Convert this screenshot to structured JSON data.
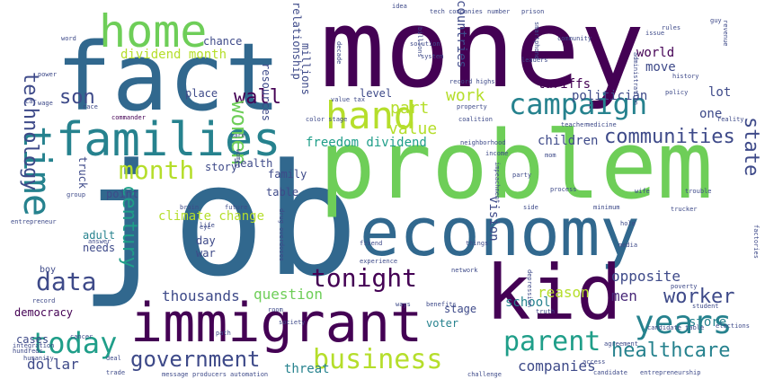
{
  "palette": {
    "deep_purple": "#440154",
    "purple": "#482878",
    "indigo": "#3e4a89",
    "blue": "#31688e",
    "teal_blue": "#26828e",
    "teal": "#1f9e89",
    "green": "#35b779",
    "light_green": "#6ece58",
    "lime": "#b5de2b",
    "yellow": "#fde725"
  },
  "words": [
    {
      "text": "money",
      "color": "#440154"
    },
    {
      "text": "job",
      "color": "#31688e"
    },
    {
      "text": "problem",
      "color": "#6ece58"
    },
    {
      "text": "fact",
      "color": "#31688e"
    },
    {
      "text": "economy",
      "color": "#31688e"
    },
    {
      "text": "immigrant",
      "color": "#440154"
    },
    {
      "text": "kid",
      "color": "#440154"
    },
    {
      "text": "families",
      "color": "#26828e"
    },
    {
      "text": "home",
      "color": "#6ece58"
    },
    {
      "text": "hand",
      "color": "#b5de2b"
    },
    {
      "text": "time",
      "color": "#26828e"
    },
    {
      "text": "campaign",
      "color": "#26828e"
    },
    {
      "text": "today",
      "color": "#1f9e89"
    },
    {
      "text": "years",
      "color": "#26828e"
    },
    {
      "text": "parent",
      "color": "#1f9e89"
    },
    {
      "text": "business",
      "color": "#b5de2b"
    },
    {
      "text": "government",
      "color": "#3e4a89"
    },
    {
      "text": "tonight",
      "color": "#440154"
    },
    {
      "text": "data",
      "color": "#3e4a89"
    },
    {
      "text": "healthcare",
      "color": "#26828e"
    },
    {
      "text": "worker",
      "color": "#3e4a89"
    },
    {
      "text": "month",
      "color": "#b5de2b"
    },
    {
      "text": "communities",
      "color": "#3e4a89"
    },
    {
      "text": "son",
      "color": "#3e4a89"
    },
    {
      "text": "wall",
      "color": "#440154"
    },
    {
      "text": "technology",
      "color": "#3e4a89"
    },
    {
      "text": "women",
      "color": "#6ece58"
    },
    {
      "text": "state",
      "color": "#3e4a89"
    },
    {
      "text": "century",
      "color": "#1f9e89"
    },
    {
      "text": "thousands",
      "color": "#3e4a89"
    },
    {
      "text": "question",
      "color": "#6ece58"
    },
    {
      "text": "dollar",
      "color": "#3e4a89"
    },
    {
      "text": "companies",
      "color": "#3e4a89"
    },
    {
      "text": "value",
      "color": "#b5de2b"
    },
    {
      "text": "part",
      "color": "#b5de2b"
    },
    {
      "text": "work",
      "color": "#b5de2b"
    },
    {
      "text": "tariffs",
      "color": "#440154"
    },
    {
      "text": "politician",
      "color": "#3e4a89"
    },
    {
      "text": "countries",
      "color": "#3e4a89"
    },
    {
      "text": "children",
      "color": "#3e4a89"
    },
    {
      "text": "men",
      "color": "#482878"
    },
    {
      "text": "opposite",
      "color": "#3e4a89"
    },
    {
      "text": "reason",
      "color": "#b5de2b"
    },
    {
      "text": "school",
      "color": "#26828e"
    },
    {
      "text": "store",
      "color": "#26828e"
    },
    {
      "text": "threat",
      "color": "#26828e"
    },
    {
      "text": "democracy",
      "color": "#440154"
    },
    {
      "text": "cases",
      "color": "#3e4a89"
    },
    {
      "text": "story",
      "color": "#3e4a89"
    },
    {
      "text": "health",
      "color": "#3e4a89"
    },
    {
      "text": "family",
      "color": "#3e4a89"
    },
    {
      "text": "table",
      "color": "#3e4a89"
    },
    {
      "text": "point",
      "color": "#3e4a89"
    },
    {
      "text": "needs",
      "color": "#3e4a89"
    },
    {
      "text": "adult",
      "color": "#26828e"
    },
    {
      "text": "day",
      "color": "#3e4a89"
    },
    {
      "text": "war",
      "color": "#3e4a89"
    },
    {
      "text": "place",
      "color": "#3e4a89"
    },
    {
      "text": "chance",
      "color": "#3e4a89"
    },
    {
      "text": "level",
      "color": "#3e4a89"
    },
    {
      "text": "lot",
      "color": "#3e4a89"
    },
    {
      "text": "move",
      "color": "#3e4a89"
    },
    {
      "text": "one",
      "color": "#3e4a89"
    },
    {
      "text": "world",
      "color": "#440154"
    },
    {
      "text": "vision",
      "color": "#3e4a89"
    },
    {
      "text": "stage",
      "color": "#3e4a89"
    },
    {
      "text": "voter",
      "color": "#26828e"
    },
    {
      "text": "climate change",
      "color": "#b5de2b"
    },
    {
      "text": "freedom dividend",
      "color": "#1f9e89"
    },
    {
      "text": "dividend month",
      "color": "#b5de2b"
    },
    {
      "text": "millions",
      "color": "#3e4a89"
    },
    {
      "text": "resources",
      "color": "#3e4a89"
    },
    {
      "text": "relationship",
      "color": "#3e4a89"
    },
    {
      "text": "truck",
      "color": "#3e4a89"
    },
    {
      "text": "boy",
      "color": "#3e4a89"
    },
    {
      "text": "record",
      "color": "#3e4a89"
    },
    {
      "text": "hundreds",
      "color": "#3e4a89"
    },
    {
      "text": "group",
      "color": "#3e4a89"
    },
    {
      "text": "trade",
      "color": "#3e4a89"
    },
    {
      "text": "message",
      "color": "#3e4a89"
    },
    {
      "text": "deal",
      "color": "#3e4a89"
    },
    {
      "text": "path",
      "color": "#3e4a89"
    },
    {
      "text": "room",
      "color": "#3e4a89"
    },
    {
      "text": "society",
      "color": "#3e4a89"
    },
    {
      "text": "friend",
      "color": "#3e4a89"
    },
    {
      "text": "trucker",
      "color": "#3e4a89"
    },
    {
      "text": "trouble",
      "color": "#3e4a89"
    },
    {
      "text": "wife",
      "color": "#3e4a89"
    },
    {
      "text": "side",
      "color": "#3e4a89"
    },
    {
      "text": "process",
      "color": "#3e4a89"
    },
    {
      "text": "media",
      "color": "#3e4a89"
    },
    {
      "text": "history",
      "color": "#3e4a89"
    },
    {
      "text": "policy",
      "color": "#3e4a89"
    },
    {
      "text": "reality",
      "color": "#3e4a89"
    },
    {
      "text": "idea",
      "color": "#3e4a89"
    },
    {
      "text": "tech companies",
      "color": "#3e4a89"
    },
    {
      "text": "number",
      "color": "#3e4a89"
    },
    {
      "text": "prison",
      "color": "#3e4a89"
    },
    {
      "text": "word",
      "color": "#3e4a89"
    },
    {
      "text": "power",
      "color": "#3e4a89"
    },
    {
      "text": "wage",
      "color": "#3e4a89"
    },
    {
      "text": "race",
      "color": "#3e4a89"
    },
    {
      "text": "commander",
      "color": "#440154"
    },
    {
      "text": "billions",
      "color": "#3e4a89"
    },
    {
      "text": "system",
      "color": "#3e4a89"
    },
    {
      "text": "solution",
      "color": "#3e4a89"
    },
    {
      "text": "record highs",
      "color": "#3e4a89"
    },
    {
      "text": "property",
      "color": "#3e4a89"
    },
    {
      "text": "coalition",
      "color": "#3e4a89"
    },
    {
      "text": "neighborhood",
      "color": "#3e4a89"
    },
    {
      "text": "income",
      "color": "#3e4a89"
    },
    {
      "text": "party",
      "color": "#3e4a89"
    },
    {
      "text": "impeachment",
      "color": "#3e4a89"
    },
    {
      "text": "things",
      "color": "#3e4a89"
    },
    {
      "text": "network",
      "color": "#3e4a89"
    },
    {
      "text": "depression",
      "color": "#3e4a89"
    },
    {
      "text": "truth",
      "color": "#3e4a89"
    },
    {
      "text": "benefits",
      "color": "#3e4a89"
    },
    {
      "text": "ways",
      "color": "#3e4a89"
    },
    {
      "text": "challenge",
      "color": "#3e4a89"
    },
    {
      "text": "candidate",
      "color": "#3e4a89"
    },
    {
      "text": "entrepreneurship",
      "color": "#3e4a89"
    },
    {
      "text": "entrepreneur",
      "color": "#3e4a89"
    },
    {
      "text": "future",
      "color": "#3e4a89"
    },
    {
      "text": "life",
      "color": "#3e4a89"
    },
    {
      "text": "experience",
      "color": "#3e4a89"
    },
    {
      "text": "agreement",
      "color": "#3e4a89"
    },
    {
      "text": "elections",
      "color": "#3e4a89"
    },
    {
      "text": "student",
      "color": "#3e4a89"
    },
    {
      "text": "cancer",
      "color": "#3e4a89"
    },
    {
      "text": "integration",
      "color": "#3e4a89"
    },
    {
      "text": "producers",
      "color": "#3e4a89"
    },
    {
      "text": "automation",
      "color": "#3e4a89"
    },
    {
      "text": "drug overdoses",
      "color": "#3e4a89"
    },
    {
      "text": "decade",
      "color": "#3e4a89"
    },
    {
      "text": "value tax",
      "color": "#3e4a89"
    },
    {
      "text": "color stage",
      "color": "#3e4a89"
    },
    {
      "text": "teacher",
      "color": "#3e4a89"
    },
    {
      "text": "administration",
      "color": "#3e4a89"
    },
    {
      "text": "smartphone",
      "color": "#3e4a89"
    },
    {
      "text": "issue",
      "color": "#3e4a89"
    },
    {
      "text": "rules",
      "color": "#3e4a89"
    },
    {
      "text": "revenue",
      "color": "#3e4a89"
    },
    {
      "text": "medicine",
      "color": "#3e4a89"
    },
    {
      "text": "poverty",
      "color": "#3e4a89"
    },
    {
      "text": "factories",
      "color": "#3e4a89"
    },
    {
      "text": "humanity",
      "color": "#3e4a89"
    },
    {
      "text": "women",
      "color": "#3e4a89"
    },
    {
      "text": "eye",
      "color": "#3e4a89"
    },
    {
      "text": "car",
      "color": "#3e4a89"
    },
    {
      "text": "hole",
      "color": "#3e4a89"
    },
    {
      "text": "answer",
      "color": "#3e4a89"
    },
    {
      "text": "candidate table",
      "color": "#3e4a89"
    },
    {
      "text": "leaders",
      "color": "#3e4a89"
    },
    {
      "text": "community",
      "color": "#3e4a89"
    },
    {
      "text": "mom",
      "color": "#3e4a89"
    },
    {
      "text": "guy",
      "color": "#3e4a89"
    },
    {
      "text": "care",
      "color": "#3e4a89"
    },
    {
      "text": "brain",
      "color": "#3e4a89"
    },
    {
      "text": "minimum",
      "color": "#3e4a89"
    },
    {
      "text": "access",
      "color": "#3e4a89"
    }
  ]
}
